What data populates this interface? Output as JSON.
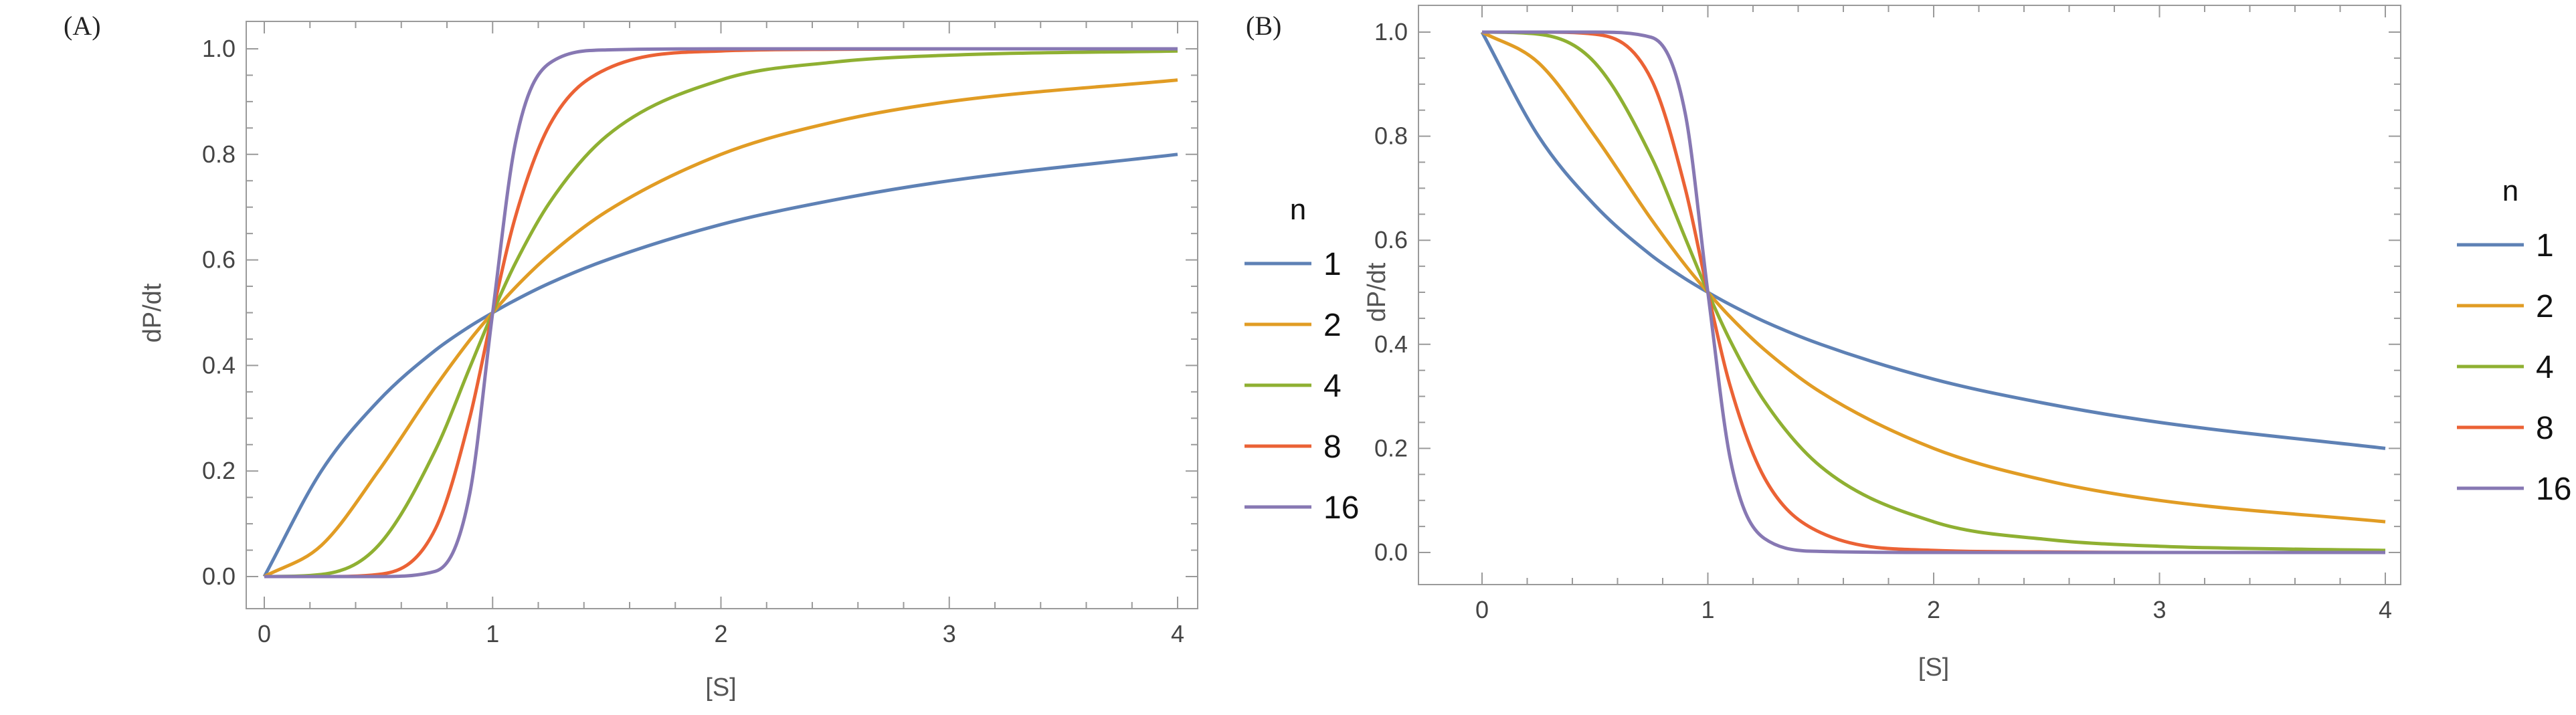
{
  "chart_data": [
    {
      "panel_label": "(A)",
      "type": "line",
      "title": "",
      "xlabel": "[S]",
      "ylabel": "dP/dt",
      "xlim": [
        0,
        4
      ],
      "ylim": [
        0,
        1
      ],
      "x_ticks": [
        "0",
        "1",
        "2",
        "3",
        "4"
      ],
      "y_ticks": [
        "0.0",
        "0.2",
        "0.4",
        "0.6",
        "0.8",
        "1.0"
      ],
      "legend_title": "n",
      "legend_position": "right",
      "x": [
        0,
        0.25,
        0.5,
        0.75,
        0.9,
        1,
        1.1,
        1.25,
        1.5,
        2,
        2.5,
        3,
        4
      ],
      "series": [
        {
          "name": "1",
          "color": "#5e81b5",
          "values": [
            0,
            0.2,
            0.333,
            0.429,
            0.474,
            0.5,
            0.524,
            0.556,
            0.6,
            0.667,
            0.714,
            0.75,
            0.8
          ]
        },
        {
          "name": "2",
          "color": "#e19c24",
          "values": [
            0,
            0.059,
            0.2,
            0.36,
            0.448,
            0.5,
            0.548,
            0.61,
            0.692,
            0.8,
            0.862,
            0.9,
            0.941
          ]
        },
        {
          "name": "4",
          "color": "#8fb032",
          "values": [
            0,
            0.004,
            0.059,
            0.24,
            0.396,
            0.5,
            0.594,
            0.709,
            0.835,
            0.941,
            0.975,
            0.988,
            0.996
          ]
        },
        {
          "name": "8",
          "color": "#eb6235",
          "values": [
            0,
            0.0,
            0.004,
            0.091,
            0.301,
            0.5,
            0.682,
            0.856,
            0.962,
            0.996,
            0.999,
            1.0,
            1.0
          ]
        },
        {
          "name": "16",
          "color": "#8778b3",
          "values": [
            0,
            0.0,
            0.0,
            0.01,
            0.157,
            0.5,
            0.822,
            0.973,
            0.998,
            1.0,
            1.0,
            1.0,
            1.0
          ]
        }
      ]
    },
    {
      "panel_label": "(B)",
      "type": "line",
      "title": "",
      "xlabel": "[S]",
      "ylabel": "dP/dt",
      "xlim": [
        0,
        4
      ],
      "ylim": [
        0,
        1
      ],
      "x_ticks": [
        "0",
        "1",
        "2",
        "3",
        "4"
      ],
      "y_ticks": [
        "0.0",
        "0.2",
        "0.4",
        "0.6",
        "0.8",
        "1.0"
      ],
      "legend_title": "n",
      "legend_position": "right",
      "x": [
        0,
        0.25,
        0.5,
        0.75,
        0.9,
        1,
        1.1,
        1.25,
        1.5,
        2,
        2.5,
        3,
        4
      ],
      "series": [
        {
          "name": "1",
          "color": "#5e81b5",
          "values": [
            1,
            0.8,
            0.667,
            0.571,
            0.526,
            0.5,
            0.476,
            0.444,
            0.4,
            0.333,
            0.286,
            0.25,
            0.2
          ]
        },
        {
          "name": "2",
          "color": "#e19c24",
          "values": [
            1,
            0.941,
            0.8,
            0.64,
            0.552,
            0.5,
            0.452,
            0.39,
            0.308,
            0.2,
            0.138,
            0.1,
            0.059
          ]
        },
        {
          "name": "4",
          "color": "#8fb032",
          "values": [
            1,
            0.996,
            0.941,
            0.76,
            0.604,
            0.5,
            0.406,
            0.291,
            0.165,
            0.059,
            0.025,
            0.012,
            0.004
          ]
        },
        {
          "name": "8",
          "color": "#eb6235",
          "values": [
            1,
            1.0,
            0.996,
            0.909,
            0.699,
            0.5,
            0.318,
            0.144,
            0.038,
            0.004,
            0.001,
            0.0,
            0.0
          ]
        },
        {
          "name": "16",
          "color": "#8778b3",
          "values": [
            1,
            1.0,
            1.0,
            0.99,
            0.843,
            0.5,
            0.178,
            0.027,
            0.002,
            0.0,
            0.0,
            0.0,
            0.0
          ]
        }
      ]
    }
  ]
}
